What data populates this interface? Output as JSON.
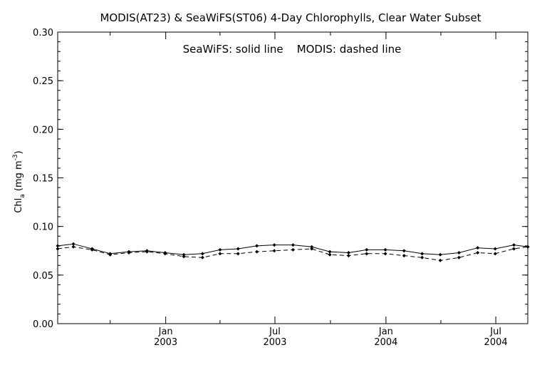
{
  "chart_data": {
    "type": "line",
    "title": "MODIS(AT23) & SeaWiFS(ST06) 4-Day Chlorophylls, Clear Water Subset",
    "annotation": "SeaWiFS: solid line    MODIS: dashed line",
    "ylabel": "Chl_a (mg m^-3)",
    "ylim": [
      0.0,
      0.3
    ],
    "yticks": [
      "0.00",
      "0.05",
      "0.10",
      "0.15",
      "0.20",
      "0.25",
      "0.30"
    ],
    "xlim": [
      "2002-07-06",
      "2004-08-23"
    ],
    "xticks": [
      {
        "date": "2003-01-01",
        "month": "Jan",
        "year": "2003"
      },
      {
        "date": "2003-07-01",
        "month": "Jul",
        "year": "2003"
      },
      {
        "date": "2004-01-01",
        "month": "Jan",
        "year": "2004"
      },
      {
        "date": "2004-07-01",
        "month": "Jul",
        "year": "2004"
      }
    ],
    "minor_xticks": [
      "2002-10-01",
      "2003-04-01",
      "2003-10-01",
      "2004-04-01"
    ],
    "grid": false,
    "series": [
      {
        "name": "SeaWiFS",
        "style": "solid",
        "x": [
          "2002-07-06",
          "2002-08-01",
          "2002-09-01",
          "2002-10-01",
          "2002-11-01",
          "2002-12-01",
          "2002-12-31",
          "2003-01-31",
          "2003-03-03",
          "2003-04-01",
          "2003-05-01",
          "2003-06-01",
          "2003-06-30",
          "2003-07-31",
          "2003-08-31",
          "2003-09-30",
          "2003-10-31",
          "2003-11-30",
          "2003-12-31",
          "2004-01-31",
          "2004-03-01",
          "2004-03-31",
          "2004-05-01",
          "2004-06-01",
          "2004-06-30",
          "2004-07-31",
          "2004-08-23"
        ],
        "values": [
          0.08,
          0.082,
          0.077,
          0.072,
          0.074,
          0.075,
          0.073,
          0.071,
          0.072,
          0.076,
          0.077,
          0.08,
          0.081,
          0.081,
          0.079,
          0.074,
          0.073,
          0.076,
          0.076,
          0.075,
          0.072,
          0.071,
          0.073,
          0.078,
          0.077,
          0.081,
          0.079
        ]
      },
      {
        "name": "MODIS",
        "style": "dashed",
        "x": [
          "2002-07-06",
          "2002-08-01",
          "2002-09-01",
          "2002-10-01",
          "2002-11-01",
          "2002-12-01",
          "2002-12-31",
          "2003-01-31",
          "2003-03-03",
          "2003-04-01",
          "2003-05-01",
          "2003-06-01",
          "2003-06-30",
          "2003-07-31",
          "2003-08-31",
          "2003-09-30",
          "2003-10-31",
          "2003-11-30",
          "2003-12-31",
          "2004-01-31",
          "2004-03-01",
          "2004-03-31",
          "2004-05-01",
          "2004-06-01",
          "2004-06-30",
          "2004-07-31",
          "2004-08-23"
        ],
        "values": [
          0.077,
          0.079,
          0.076,
          0.071,
          0.073,
          0.074,
          0.072,
          0.069,
          0.068,
          0.072,
          0.072,
          0.074,
          0.075,
          0.076,
          0.077,
          0.071,
          0.07,
          0.072,
          0.072,
          0.07,
          0.068,
          0.065,
          0.068,
          0.073,
          0.072,
          0.077,
          0.079
        ]
      }
    ]
  }
}
